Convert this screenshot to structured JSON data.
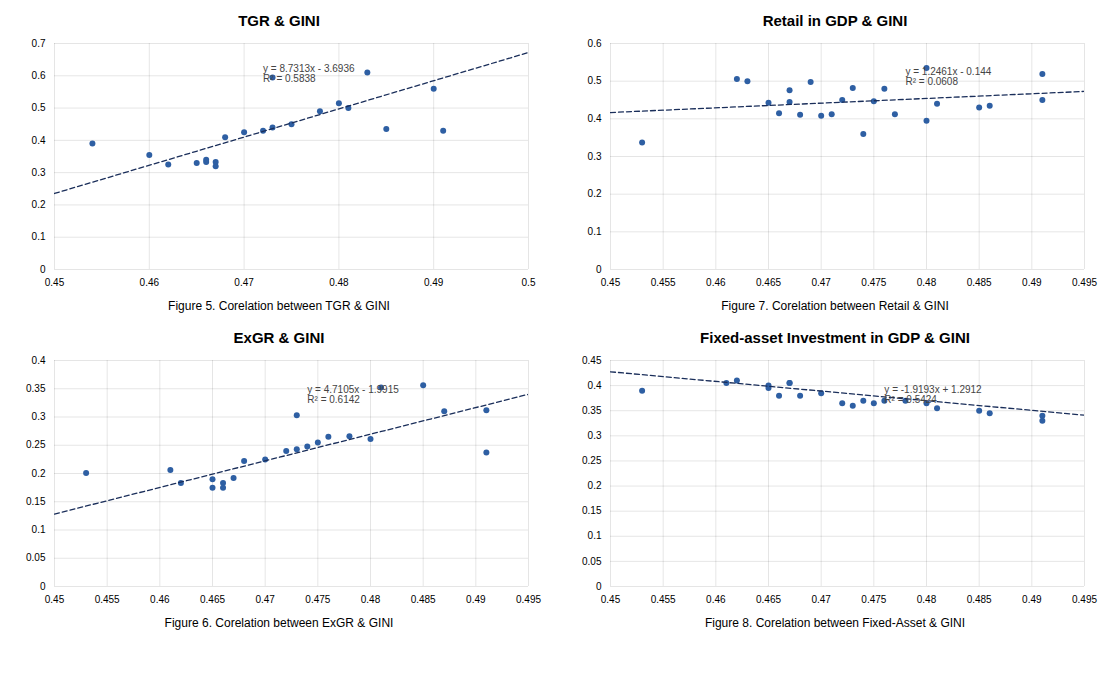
{
  "chart_data": [
    {
      "type": "scatter",
      "title": "TGR & GINI",
      "caption": "Figure 5. Corelation between TGR & GINI",
      "series": [
        {
          "type": "scatter",
          "marker": "circle",
          "color": "#2E5FA3",
          "x": [
            0.454,
            0.46,
            0.462,
            0.465,
            0.466,
            0.466,
            0.467,
            0.467,
            0.468,
            0.47,
            0.472,
            0.473,
            0.473,
            0.475,
            0.478,
            0.48,
            0.481,
            0.483,
            0.485,
            0.49,
            0.491
          ],
          "values": [
            0.39,
            0.355,
            0.325,
            0.33,
            0.333,
            0.34,
            0.32,
            0.333,
            0.41,
            0.425,
            0.43,
            0.44,
            0.595,
            0.45,
            0.49,
            0.515,
            0.5,
            0.61,
            0.435,
            0.56,
            0.43
          ]
        },
        {
          "type": "line",
          "line_style": "dashed",
          "color": "#1a2e5a",
          "x": [
            0.45,
            0.5
          ],
          "values": [
            0.235485,
            0.67205
          ]
        }
      ],
      "annotations": [
        {
          "text": "y = 8.7313x - 3.6936\nR² = 0.5838",
          "x": 0.472,
          "y": 0.635
        }
      ],
      "xlim": [
        0.45,
        0.5
      ],
      "ylim": [
        0,
        0.7
      ],
      "xticks": [
        0.45,
        0.46,
        0.47,
        0.48,
        0.49,
        0.5
      ],
      "yticks": [
        0,
        0.1,
        0.2,
        0.3,
        0.4,
        0.5,
        0.6,
        0.7
      ],
      "grid": true
    },
    {
      "type": "scatter",
      "title": "Retail in GDP & GINI",
      "caption": "Figure 7. Corelation between Retail & GINI",
      "series": [
        {
          "type": "scatter",
          "marker": "circle",
          "color": "#2E5FA3",
          "x": [
            0.453,
            0.462,
            0.463,
            0.465,
            0.466,
            0.467,
            0.467,
            0.468,
            0.469,
            0.47,
            0.471,
            0.472,
            0.473,
            0.474,
            0.475,
            0.476,
            0.477,
            0.48,
            0.48,
            0.481,
            0.485,
            0.486,
            0.491,
            0.491
          ],
          "values": [
            0.337,
            0.506,
            0.5,
            0.443,
            0.415,
            0.476,
            0.445,
            0.411,
            0.498,
            0.408,
            0.412,
            0.45,
            0.482,
            0.36,
            0.447,
            0.48,
            0.412,
            0.395,
            0.535,
            0.44,
            0.43,
            0.435,
            0.519,
            0.45
          ]
        },
        {
          "type": "line",
          "line_style": "dashed",
          "color": "#1a2e5a",
          "x": [
            0.45,
            0.495
          ],
          "values": [
            0.416745,
            0.4728195
          ]
        }
      ],
      "annotations": [
        {
          "text": "y = 1.2461x - 0.144\nR² = 0.0608",
          "x": 0.478,
          "y": 0.535
        }
      ],
      "xlim": [
        0.45,
        0.495
      ],
      "ylim": [
        0,
        0.6
      ],
      "xticks": [
        0.45,
        0.455,
        0.46,
        0.465,
        0.47,
        0.475,
        0.48,
        0.485,
        0.49,
        0.495
      ],
      "yticks": [
        0,
        0.1,
        0.2,
        0.3,
        0.4,
        0.5,
        0.6
      ],
      "grid": true
    },
    {
      "type": "scatter",
      "title": "ExGR & GINI",
      "caption": "Figure 6. Corelation between ExGR & GINI",
      "series": [
        {
          "type": "scatter",
          "marker": "circle",
          "color": "#2E5FA3",
          "x": [
            0.453,
            0.461,
            0.462,
            0.465,
            0.465,
            0.466,
            0.466,
            0.467,
            0.468,
            0.47,
            0.472,
            0.473,
            0.473,
            0.474,
            0.475,
            0.476,
            0.478,
            0.48,
            0.481,
            0.485,
            0.487,
            0.491,
            0.491
          ],
          "values": [
            0.201,
            0.206,
            0.183,
            0.175,
            0.19,
            0.183,
            0.175,
            0.192,
            0.222,
            0.225,
            0.24,
            0.243,
            0.303,
            0.248,
            0.255,
            0.265,
            0.266,
            0.261,
            0.352,
            0.356,
            0.31,
            0.237,
            0.312
          ]
        },
        {
          "type": "line",
          "line_style": "dashed",
          "color": "#1a2e5a",
          "x": [
            0.45,
            0.495
          ],
          "values": [
            0.128225,
            0.3401975
          ]
        }
      ],
      "annotations": [
        {
          "text": "y = 4.7105x - 1.9915\nR² = 0.6142",
          "x": 0.474,
          "y": 0.355
        }
      ],
      "xlim": [
        0.45,
        0.495
      ],
      "ylim": [
        0,
        0.4
      ],
      "xticks": [
        0.45,
        0.455,
        0.46,
        0.465,
        0.47,
        0.475,
        0.48,
        0.485,
        0.49,
        0.495
      ],
      "yticks": [
        0,
        0.05,
        0.1,
        0.15,
        0.2,
        0.25,
        0.3,
        0.35,
        0.4
      ],
      "grid": true
    },
    {
      "type": "scatter",
      "title": "Fixed-asset Investment in GDP & GINI",
      "caption": "Figure 8. Corelation between Fixed-Asset & GINI",
      "series": [
        {
          "type": "scatter",
          "marker": "circle",
          "color": "#2E5FA3",
          "x": [
            0.453,
            0.461,
            0.462,
            0.465,
            0.465,
            0.466,
            0.467,
            0.467,
            0.468,
            0.47,
            0.472,
            0.473,
            0.474,
            0.475,
            0.476,
            0.478,
            0.48,
            0.481,
            0.485,
            0.486,
            0.491,
            0.491
          ],
          "values": [
            0.39,
            0.405,
            0.41,
            0.4,
            0.395,
            0.38,
            0.405,
            0.405,
            0.38,
            0.385,
            0.365,
            0.36,
            0.37,
            0.365,
            0.37,
            0.37,
            0.365,
            0.355,
            0.35,
            0.345,
            0.33,
            0.34
          ]
        },
        {
          "type": "line",
          "line_style": "dashed",
          "color": "#1a2e5a",
          "x": [
            0.45,
            0.495
          ],
          "values": [
            0.427515,
            0.3411465
          ]
        }
      ],
      "annotations": [
        {
          "text": "y = -1.9193x + 1.2912\nR² = 0.5424",
          "x": 0.476,
          "y": 0.4
        }
      ],
      "xlim": [
        0.45,
        0.495
      ],
      "ylim": [
        0,
        0.45
      ],
      "xticks": [
        0.45,
        0.455,
        0.46,
        0.465,
        0.47,
        0.475,
        0.48,
        0.485,
        0.49,
        0.495
      ],
      "yticks": [
        0,
        0.05,
        0.1,
        0.15,
        0.2,
        0.25,
        0.3,
        0.35,
        0.4,
        0.45
      ],
      "grid": true
    }
  ]
}
